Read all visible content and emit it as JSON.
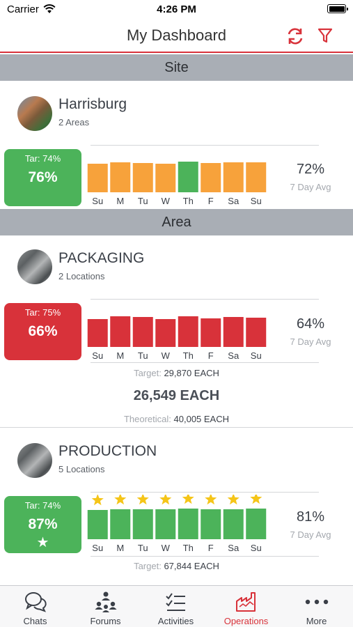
{
  "status_bar": {
    "carrier": "Carrier",
    "time": "4:26 PM"
  },
  "nav": {
    "title": "My Dashboard",
    "accent": "#d8323a"
  },
  "sections": {
    "site": "Site",
    "area": "Area"
  },
  "day_labels": [
    "Su",
    "M",
    "Tu",
    "W",
    "Th",
    "F",
    "Sa",
    "Su"
  ],
  "colors": {
    "green": "#4cb35a",
    "orange": "#f7a23b",
    "red": "#d8323a",
    "star": "#f5c518"
  },
  "harrisburg": {
    "name": "Harrisburg",
    "sub": "2 Areas",
    "tile_target": "Tar: 74%",
    "tile_value": "76%",
    "avg": "72%",
    "avg_label": "7 Day Avg",
    "bars": [
      {
        "level": 0.93,
        "color": "orange"
      },
      {
        "level": 0.98,
        "color": "orange"
      },
      {
        "level": 0.95,
        "color": "orange"
      },
      {
        "level": 0.93,
        "color": "orange"
      },
      {
        "level": 1.0,
        "color": "green"
      },
      {
        "level": 0.96,
        "color": "orange"
      },
      {
        "level": 0.97,
        "color": "orange"
      },
      {
        "level": 0.97,
        "color": "orange"
      }
    ]
  },
  "packaging": {
    "name": "PACKAGING",
    "sub": "2 Locations",
    "tile_target": "Tar: 75%",
    "tile_value": "66%",
    "avg": "64%",
    "avg_label": "7 Day Avg",
    "bars": [
      {
        "level": 0.9,
        "color": "red"
      },
      {
        "level": 1.0,
        "color": "red"
      },
      {
        "level": 0.97,
        "color": "red"
      },
      {
        "level": 0.9,
        "color": "red"
      },
      {
        "level": 1.0,
        "color": "red"
      },
      {
        "level": 0.93,
        "color": "red"
      },
      {
        "level": 0.97,
        "color": "red"
      },
      {
        "level": 0.95,
        "color": "red"
      }
    ],
    "target_label": "Target:",
    "target_value": "29,870 EACH",
    "big_value": "26,549 EACH",
    "theoretical_label": "Theoretical:",
    "theoretical_value": "40,005 EACH"
  },
  "production": {
    "name": "PRODUCTION",
    "sub": "5 Locations",
    "tile_target": "Tar: 74%",
    "tile_value": "87%",
    "tile_star": "★",
    "avg": "81%",
    "avg_label": "7 Day Avg",
    "bars": [
      {
        "level": 0.95,
        "color": "green",
        "star": true
      },
      {
        "level": 0.97,
        "color": "green",
        "star": true
      },
      {
        "level": 0.97,
        "color": "green",
        "star": true
      },
      {
        "level": 0.97,
        "color": "green",
        "star": true
      },
      {
        "level": 1.0,
        "color": "green",
        "star": true
      },
      {
        "level": 0.97,
        "color": "green",
        "star": true
      },
      {
        "level": 0.97,
        "color": "green",
        "star": true
      },
      {
        "level": 1.0,
        "color": "green",
        "star": true
      }
    ],
    "target_label": "Target:",
    "target_value": "67,844 EACH"
  },
  "tabs": [
    {
      "label": "Chats",
      "icon": "chat-bubbles-icon"
    },
    {
      "label": "Forums",
      "icon": "people-network-icon"
    },
    {
      "label": "Activities",
      "icon": "checklist-icon"
    },
    {
      "label": "Operations",
      "icon": "factory-icon",
      "active": true
    },
    {
      "label": "More",
      "icon": "more-dots-icon"
    }
  ]
}
